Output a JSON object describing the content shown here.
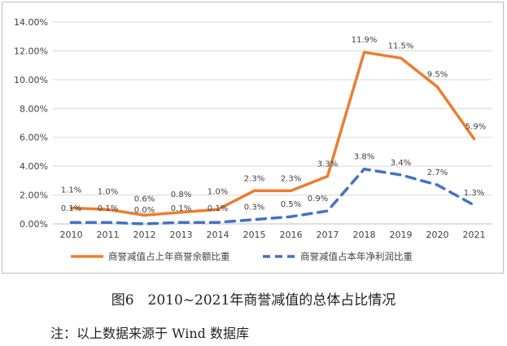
{
  "chart_data": {
    "type": "line",
    "categories": [
      "2010",
      "2011",
      "2012",
      "2013",
      "2014",
      "2015",
      "2016",
      "2017",
      "2018",
      "2019",
      "2020",
      "2021"
    ],
    "y_ticks": [
      "0.00%",
      "2.00%",
      "4.00%",
      "6.00%",
      "8.00%",
      "10.00%",
      "12.00%",
      "14.00%"
    ],
    "ylim": [
      0,
      14
    ],
    "grid": true,
    "legend_position": "bottom",
    "series": [
      {
        "name": "商誉减值占上年商誉余额比重",
        "values": [
          1.1,
          1.0,
          0.6,
          0.8,
          1.0,
          2.3,
          2.3,
          3.3,
          11.9,
          11.5,
          9.5,
          5.9
        ],
        "labels": [
          "1.1%",
          "1.0%",
          "0.6%",
          "0.8%",
          "1.0%",
          "2.3%",
          "2.3%",
          "3.3%",
          "11.9%",
          "11.5%",
          "9.5%",
          "5.9%"
        ],
        "color": "#ed7d31",
        "style": "solid"
      },
      {
        "name": "商誉减值占本年净利润比重",
        "values": [
          0.1,
          0.1,
          0.0,
          0.1,
          0.1,
          0.3,
          0.5,
          0.9,
          3.8,
          3.4,
          2.7,
          1.3
        ],
        "labels": [
          "0.1%",
          "0.1%",
          "0.0%",
          "0.1%",
          "0.1%",
          "0.3%",
          "0.5%",
          "0.9%",
          "3.8%",
          "3.4%",
          "2.7%",
          "1.3%"
        ],
        "color": "#4472c4",
        "style": "dashed"
      }
    ]
  },
  "caption": "图6　2010~2021年商誉减值的总体占比情况",
  "note": "注：以上数据来源于 Wind 数据库"
}
